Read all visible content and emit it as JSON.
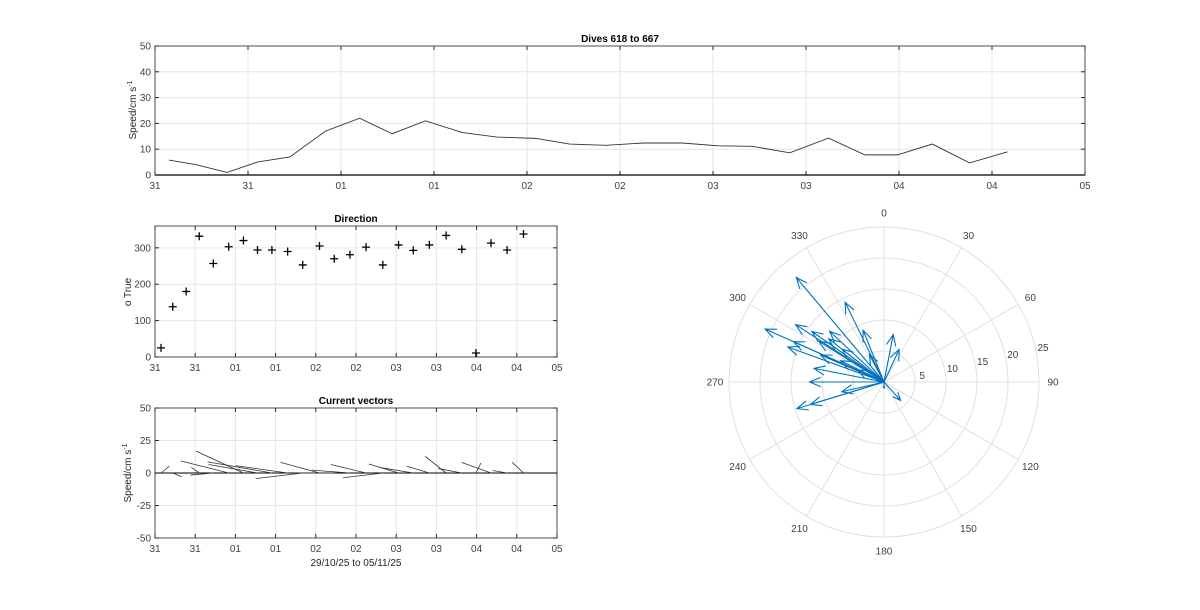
{
  "chart_data": [
    {
      "type": "line",
      "title": "Dives 618 to 667",
      "ylabel": "Speed/cm s",
      "ylabel_sup": "-1",
      "xlim_hours": [
        0,
        120
      ],
      "ylim": [
        0,
        50
      ],
      "yticks": [
        0,
        10,
        20,
        30,
        40,
        50
      ],
      "xtick_labels": [
        "31",
        "31",
        "01",
        "01",
        "02",
        "02",
        "03",
        "03",
        "04",
        "04",
        "05"
      ],
      "grid": true,
      "x_hours": [
        1.8,
        5.3,
        9.3,
        13.2,
        17.4,
        22.0,
        26.4,
        30.6,
        34.9,
        39.6,
        44.1,
        49.1,
        53.5,
        58.2,
        63.0,
        68.0,
        72.7,
        77.1,
        81.9,
        86.9,
        91.6,
        95.8,
        100.3,
        105.1,
        110.0
      ],
      "values": [
        5.8,
        4,
        1,
        5,
        7,
        17,
        22,
        16,
        21,
        16.5,
        14.7,
        14.2,
        12,
        11.5,
        12.4,
        12.4,
        11.3,
        11.1,
        8.6,
        14.3,
        7.8,
        7.8,
        12,
        4.7,
        9
      ]
    },
    {
      "type": "scatter",
      "title": "Direction",
      "ylabel": "o True",
      "ylim": [
        0,
        360
      ],
      "yticks": [
        0,
        100,
        200,
        300
      ],
      "xtick_labels": [
        "31",
        "31",
        "01",
        "01",
        "02",
        "02",
        "03",
        "03",
        "04",
        "04",
        "05"
      ],
      "grid": true,
      "values": [
        25,
        138,
        180,
        332,
        257,
        303,
        320,
        294,
        294,
        290,
        253,
        305,
        270,
        281,
        302,
        253,
        308,
        293,
        308,
        334,
        296,
        11,
        313,
        294,
        338
      ]
    },
    {
      "type": "stick",
      "title": "Current vectors",
      "ylabel": "Speed/cm s",
      "ylabel_sup": "-1",
      "xlabel": "29/10/25 to 05/11/25",
      "ylim": [
        -50,
        50
      ],
      "yticks": [
        -50,
        -25,
        0,
        25,
        50
      ],
      "xtick_labels": [
        "31",
        "31",
        "01",
        "01",
        "02",
        "02",
        "03",
        "03",
        "04",
        "04",
        "05"
      ],
      "grid": true
    },
    {
      "type": "polar",
      "rlim": [
        0,
        25
      ],
      "rticks": [
        5,
        10,
        15,
        20,
        25
      ],
      "theta_ticks": [
        0,
        30,
        60,
        90,
        120,
        150,
        180,
        210,
        240,
        270,
        300,
        330
      ],
      "color": "#0072BD"
    }
  ]
}
